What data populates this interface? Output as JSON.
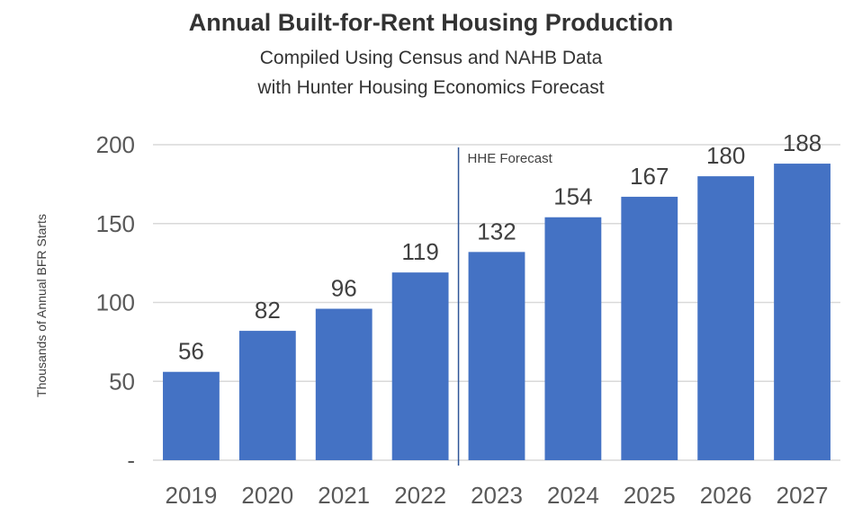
{
  "chart_data": {
    "type": "bar",
    "title": "Annual Built-for-Rent Housing Production",
    "subtitle_lines": [
      "Compiled Using Census and NAHB Data",
      "with Hunter Housing Economics Forecast"
    ],
    "ylabel": "Thousands of Annual BFR Starts",
    "xlabel": "",
    "categories": [
      "2019",
      "2020",
      "2021",
      "2022",
      "2023",
      "2024",
      "2025",
      "2026",
      "2027"
    ],
    "values": [
      56,
      82,
      96,
      119,
      132,
      154,
      167,
      180,
      188
    ],
    "value_labels": [
      "56",
      "82",
      "96",
      "119",
      "132",
      "154",
      "167",
      "180",
      "188"
    ],
    "ylim": [
      0,
      200
    ],
    "yticks": [
      0,
      50,
      100,
      150,
      200
    ],
    "ytick_labels": [
      "-",
      "50",
      "100",
      "150",
      "200"
    ],
    "grid": true,
    "legend": "none",
    "bar_color": "#4472C4",
    "forecast_marker": {
      "label": "HHE Forecast",
      "between": [
        "2022",
        "2023"
      ],
      "line_color": "#2F5597"
    }
  }
}
